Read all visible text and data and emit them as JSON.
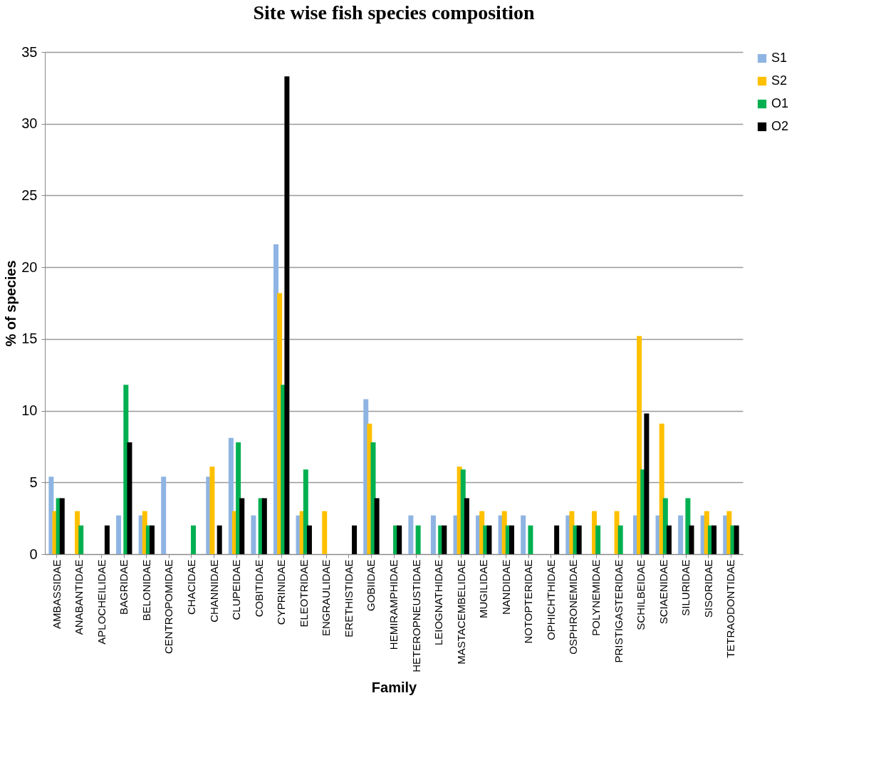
{
  "chart_data": {
    "type": "bar",
    "title": "Site wise fish species composition",
    "xlabel": "Family",
    "ylabel": "% of species",
    "categories": [
      "AMBASSIDAE",
      "ANABANTIDAE",
      "APLOCHEILIDAE",
      "BAGRIDAE",
      "BELONIDAE",
      "CENTROPOMIDAE",
      "CHACIDAE",
      "CHANNIDAE",
      "CLUPEIDAE",
      "COBITIDAE",
      "CYPRINIDAE",
      "ELEOTRIDAE",
      "ENGRAULIDAE",
      "ERETHISTIDAE",
      "GOBIIDAE",
      "HEMIRAMPHIDAE",
      "HETEROPNEUSTIDAE",
      "LEIOGNATHIDAE",
      "MASTACEMBELIDAE",
      "MUGILIDAE",
      "NANDIDAE",
      "NOTOPTERIDAE",
      "OPHICHTHIDAE",
      "OSPHRONEMIDAE",
      "POLYNEMIDAE",
      "PRISTIGASTERIDAE",
      "SCHILBEIDAE",
      "SCIAENIDAE",
      "SILURIDAE",
      "SISORIDAE",
      "TETRAODONTIDAE"
    ],
    "series": [
      {
        "name": "S1",
        "color": "#8eb4e3",
        "values": [
          5.4,
          null,
          null,
          2.7,
          2.7,
          5.4,
          null,
          5.4,
          8.1,
          2.7,
          21.6,
          2.7,
          null,
          null,
          10.8,
          null,
          2.7,
          2.7,
          2.7,
          2.7,
          2.7,
          2.7,
          null,
          2.7,
          null,
          null,
          2.7,
          2.7,
          2.7,
          2.7,
          2.7
        ]
      },
      {
        "name": "S2",
        "color": "#ffc000",
        "values": [
          3.0,
          3.0,
          null,
          null,
          3.0,
          null,
          null,
          6.1,
          3.0,
          null,
          18.2,
          3.0,
          3.0,
          null,
          9.1,
          null,
          null,
          null,
          6.1,
          3.0,
          3.0,
          null,
          null,
          3.0,
          3.0,
          3.0,
          15.2,
          9.1,
          null,
          3.0,
          3.0
        ]
      },
      {
        "name": "O1",
        "color": "#00b050",
        "values": [
          3.9,
          2.0,
          null,
          11.8,
          2.0,
          null,
          2.0,
          null,
          7.8,
          3.9,
          11.8,
          5.9,
          null,
          null,
          7.8,
          2.0,
          2.0,
          2.0,
          5.9,
          2.0,
          2.0,
          2.0,
          null,
          2.0,
          2.0,
          2.0,
          5.9,
          3.9,
          3.9,
          2.0,
          2.0
        ]
      },
      {
        "name": "O2",
        "color": "#000000",
        "values": [
          3.9,
          null,
          2.0,
          7.8,
          2.0,
          null,
          null,
          2.0,
          3.9,
          3.9,
          33.3,
          2.0,
          null,
          2.0,
          3.9,
          2.0,
          null,
          2.0,
          3.9,
          2.0,
          2.0,
          null,
          2.0,
          2.0,
          null,
          null,
          9.8,
          2.0,
          2.0,
          2.0,
          2.0
        ]
      }
    ],
    "ylim": [
      0,
      35
    ],
    "yticks": [
      0,
      5,
      10,
      15,
      20,
      25,
      30,
      35
    ],
    "grid": "y",
    "legend": "right"
  }
}
